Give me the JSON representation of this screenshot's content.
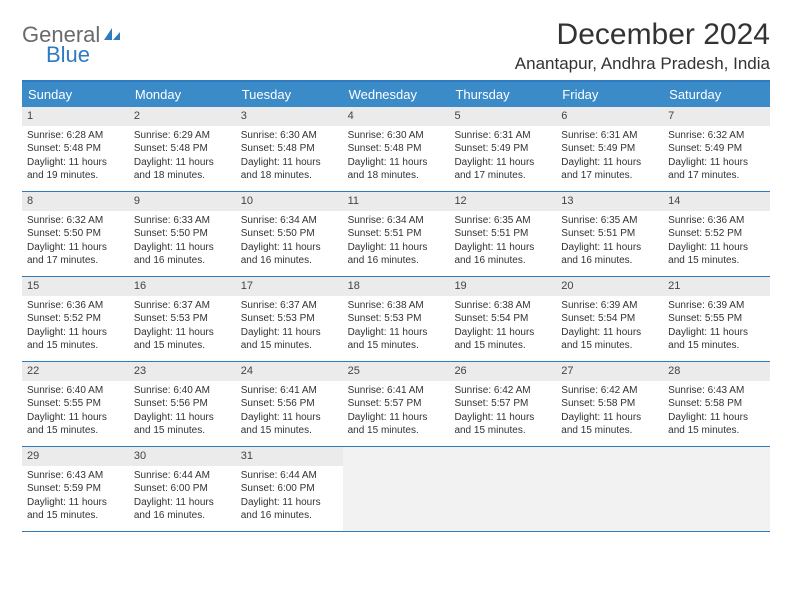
{
  "logo": {
    "text1": "General",
    "text2": "Blue"
  },
  "title": "December 2024",
  "location": "Anantapur, Andhra Pradesh, India",
  "colors": {
    "accent": "#3b8bc9",
    "border": "#2f7bbf",
    "daynum_bg": "#ebebeb",
    "empty_bg": "#f2f2f2",
    "text": "#333333",
    "logo_gray": "#6a6a6a"
  },
  "day_headers": [
    "Sunday",
    "Monday",
    "Tuesday",
    "Wednesday",
    "Thursday",
    "Friday",
    "Saturday"
  ],
  "weeks": [
    [
      {
        "n": "1",
        "sr": "6:28 AM",
        "ss": "5:48 PM",
        "dl": "11 hours and 19 minutes."
      },
      {
        "n": "2",
        "sr": "6:29 AM",
        "ss": "5:48 PM",
        "dl": "11 hours and 18 minutes."
      },
      {
        "n": "3",
        "sr": "6:30 AM",
        "ss": "5:48 PM",
        "dl": "11 hours and 18 minutes."
      },
      {
        "n": "4",
        "sr": "6:30 AM",
        "ss": "5:48 PM",
        "dl": "11 hours and 18 minutes."
      },
      {
        "n": "5",
        "sr": "6:31 AM",
        "ss": "5:49 PM",
        "dl": "11 hours and 17 minutes."
      },
      {
        "n": "6",
        "sr": "6:31 AM",
        "ss": "5:49 PM",
        "dl": "11 hours and 17 minutes."
      },
      {
        "n": "7",
        "sr": "6:32 AM",
        "ss": "5:49 PM",
        "dl": "11 hours and 17 minutes."
      }
    ],
    [
      {
        "n": "8",
        "sr": "6:32 AM",
        "ss": "5:50 PM",
        "dl": "11 hours and 17 minutes."
      },
      {
        "n": "9",
        "sr": "6:33 AM",
        "ss": "5:50 PM",
        "dl": "11 hours and 16 minutes."
      },
      {
        "n": "10",
        "sr": "6:34 AM",
        "ss": "5:50 PM",
        "dl": "11 hours and 16 minutes."
      },
      {
        "n": "11",
        "sr": "6:34 AM",
        "ss": "5:51 PM",
        "dl": "11 hours and 16 minutes."
      },
      {
        "n": "12",
        "sr": "6:35 AM",
        "ss": "5:51 PM",
        "dl": "11 hours and 16 minutes."
      },
      {
        "n": "13",
        "sr": "6:35 AM",
        "ss": "5:51 PM",
        "dl": "11 hours and 16 minutes."
      },
      {
        "n": "14",
        "sr": "6:36 AM",
        "ss": "5:52 PM",
        "dl": "11 hours and 15 minutes."
      }
    ],
    [
      {
        "n": "15",
        "sr": "6:36 AM",
        "ss": "5:52 PM",
        "dl": "11 hours and 15 minutes."
      },
      {
        "n": "16",
        "sr": "6:37 AM",
        "ss": "5:53 PM",
        "dl": "11 hours and 15 minutes."
      },
      {
        "n": "17",
        "sr": "6:37 AM",
        "ss": "5:53 PM",
        "dl": "11 hours and 15 minutes."
      },
      {
        "n": "18",
        "sr": "6:38 AM",
        "ss": "5:53 PM",
        "dl": "11 hours and 15 minutes."
      },
      {
        "n": "19",
        "sr": "6:38 AM",
        "ss": "5:54 PM",
        "dl": "11 hours and 15 minutes."
      },
      {
        "n": "20",
        "sr": "6:39 AM",
        "ss": "5:54 PM",
        "dl": "11 hours and 15 minutes."
      },
      {
        "n": "21",
        "sr": "6:39 AM",
        "ss": "5:55 PM",
        "dl": "11 hours and 15 minutes."
      }
    ],
    [
      {
        "n": "22",
        "sr": "6:40 AM",
        "ss": "5:55 PM",
        "dl": "11 hours and 15 minutes."
      },
      {
        "n": "23",
        "sr": "6:40 AM",
        "ss": "5:56 PM",
        "dl": "11 hours and 15 minutes."
      },
      {
        "n": "24",
        "sr": "6:41 AM",
        "ss": "5:56 PM",
        "dl": "11 hours and 15 minutes."
      },
      {
        "n": "25",
        "sr": "6:41 AM",
        "ss": "5:57 PM",
        "dl": "11 hours and 15 minutes."
      },
      {
        "n": "26",
        "sr": "6:42 AM",
        "ss": "5:57 PM",
        "dl": "11 hours and 15 minutes."
      },
      {
        "n": "27",
        "sr": "6:42 AM",
        "ss": "5:58 PM",
        "dl": "11 hours and 15 minutes."
      },
      {
        "n": "28",
        "sr": "6:43 AM",
        "ss": "5:58 PM",
        "dl": "11 hours and 15 minutes."
      }
    ],
    [
      {
        "n": "29",
        "sr": "6:43 AM",
        "ss": "5:59 PM",
        "dl": "11 hours and 15 minutes."
      },
      {
        "n": "30",
        "sr": "6:44 AM",
        "ss": "6:00 PM",
        "dl": "11 hours and 16 minutes."
      },
      {
        "n": "31",
        "sr": "6:44 AM",
        "ss": "6:00 PM",
        "dl": "11 hours and 16 minutes."
      },
      null,
      null,
      null,
      null
    ]
  ],
  "labels": {
    "sunrise": "Sunrise: ",
    "sunset": "Sunset: ",
    "daylight": "Daylight: "
  }
}
